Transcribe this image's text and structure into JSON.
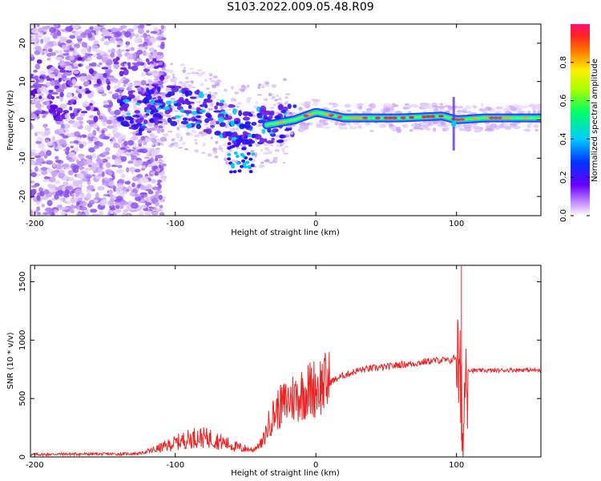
{
  "title": "S103.2022.009.05.48.R09",
  "colors": {
    "series": "#ee2222",
    "axis": "#000000",
    "spec_low": "#ddb6f6",
    "spec_mid": "#6600ee",
    "spec_high": "#ff2222"
  },
  "chart_data": [
    {
      "type": "heatmap",
      "title": "S103.2022.009.05.48.R09",
      "xlabel": "Height of straight line (km)",
      "ylabel": "Frequency (Hz)",
      "xlim": [
        -203,
        160
      ],
      "ylim": [
        -25,
        25
      ],
      "xticks": [
        -200,
        -100,
        0,
        100
      ],
      "xtick_labels": [
        "-200",
        "-100",
        "0",
        "100"
      ],
      "yticks": [
        -20,
        -10,
        0,
        10,
        20
      ],
      "ytick_labels": [
        "-20",
        "-10",
        "0",
        "10",
        "20"
      ],
      "colorbar": {
        "label": "Normalized spectral amplitude",
        "range": [
          0,
          1
        ],
        "ticks": [
          0.0,
          0.2,
          0.4,
          0.6,
          0.8
        ],
        "tick_labels": [
          "0.0",
          "0.2",
          "0.4",
          "0.6",
          "0.8"
        ],
        "colormap": "rainbow (violet → red)"
      },
      "carrier_trace": [
        {
          "x": -120,
          "f": 4
        },
        {
          "x": -100,
          "f": 4
        },
        {
          "x": -80,
          "f": 2
        },
        {
          "x": -60,
          "f": -1
        },
        {
          "x": -45,
          "f": -2
        },
        {
          "x": -30,
          "f": -1
        },
        {
          "x": -15,
          "f": 0
        },
        {
          "x": 0,
          "f": 2
        },
        {
          "x": 20,
          "f": 0.5
        },
        {
          "x": 60,
          "f": 0.5
        },
        {
          "x": 90,
          "f": 1
        },
        {
          "x": 100,
          "f": 0
        },
        {
          "x": 120,
          "f": 0.5
        },
        {
          "x": 160,
          "f": 0.5
        }
      ]
    },
    {
      "type": "line",
      "xlabel": "Height of straight line (km)",
      "ylabel": "SNR (10 * v/v)",
      "xlim": [
        -203,
        160
      ],
      "ylim": [
        0,
        1640
      ],
      "xticks": [
        -200,
        -100,
        0,
        100
      ],
      "xtick_labels": [
        "-200",
        "-100",
        "0",
        "100"
      ],
      "yticks": [
        0,
        500,
        1000,
        1500
      ],
      "ytick_labels": [
        "0",
        "500",
        "1000",
        "1500"
      ],
      "x": [
        -203,
        -180,
        -160,
        -140,
        -125,
        -115,
        -105,
        -95,
        -85,
        -75,
        -65,
        -55,
        -45,
        -38,
        -33,
        -28,
        -23,
        -18,
        -13,
        -8,
        -3,
        0,
        10,
        20,
        30,
        40,
        50,
        60,
        70,
        80,
        90,
        95,
        100,
        102,
        104,
        105,
        106,
        107,
        110,
        120,
        130,
        140,
        150,
        160
      ],
      "y": [
        20,
        25,
        25,
        25,
        30,
        60,
        100,
        140,
        170,
        160,
        120,
        80,
        60,
        120,
        300,
        400,
        450,
        500,
        520,
        560,
        580,
        600,
        640,
        700,
        740,
        760,
        770,
        790,
        800,
        820,
        830,
        820,
        860,
        700,
        300,
        150,
        700,
        760,
        740,
        740,
        740,
        745,
        745,
        740
      ]
    }
  ]
}
